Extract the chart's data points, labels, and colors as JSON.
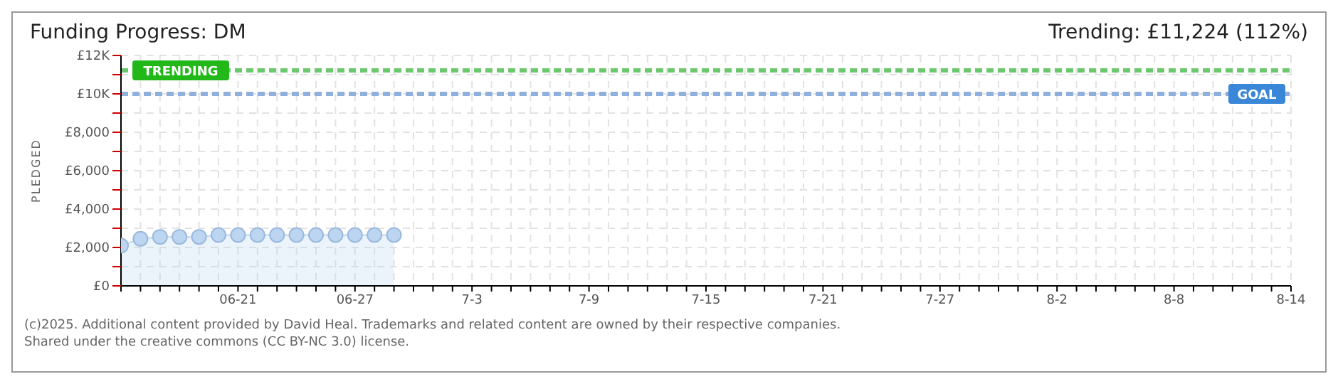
{
  "chart_data": {
    "type": "area",
    "title": "Funding Progress: DM",
    "subtitle": "Trending: £11,224 (112%)",
    "ylabel": "PLEDGED",
    "x": [
      "--06-15",
      "--06-16",
      "--06-17",
      "--06-18",
      "--06-19",
      "--06-20",
      "--06-21",
      "--06-22",
      "--06-23",
      "--06-24",
      "--06-25",
      "--06-26",
      "--06-27",
      "--06-28",
      "--06-29"
    ],
    "series": [
      {
        "color": "#bcd6f2",
        "values": [
          2100,
          2450,
          2550,
          2550,
          2550,
          2650,
          2650,
          2650,
          2650,
          2650,
          2650,
          2650,
          2650,
          2650,
          2650
        ]
      }
    ],
    "marker": "circle",
    "xlim": [
      "--06-15",
      "--08-14"
    ],
    "xticks": [
      {
        "value": "--06-15",
        "label": null
      },
      {
        "value": "--06-16",
        "label": null
      },
      {
        "value": "--06-17",
        "label": null
      },
      {
        "value": "--06-18",
        "label": null
      },
      {
        "value": "--06-19",
        "label": null
      },
      {
        "value": "--06-20",
        "label": null
      },
      {
        "value": "--06-21",
        "label": "06-21"
      },
      {
        "value": "--06-22",
        "label": null
      },
      {
        "value": "--06-23",
        "label": null
      },
      {
        "value": "--06-24",
        "label": null
      },
      {
        "value": "--06-25",
        "label": null
      },
      {
        "value": "--06-26",
        "label": null
      },
      {
        "value": "--06-27",
        "label": "06-27"
      },
      {
        "value": "--06-28",
        "label": null
      },
      {
        "value": "--06-29",
        "label": null
      },
      {
        "value": "--06-30",
        "label": null
      },
      {
        "value": "--07-01",
        "label": null
      },
      {
        "value": "--07-02",
        "label": null
      },
      {
        "value": "--07-03",
        "label": "7-3"
      },
      {
        "value": "--07-04",
        "label": null
      },
      {
        "value": "--07-05",
        "label": null
      },
      {
        "value": "--07-06",
        "label": null
      },
      {
        "value": "--07-07",
        "label": null
      },
      {
        "value": "--07-08",
        "label": null
      },
      {
        "value": "--07-09",
        "label": "7-9"
      },
      {
        "value": "--07-10",
        "label": null
      },
      {
        "value": "--07-11",
        "label": null
      },
      {
        "value": "--07-12",
        "label": null
      },
      {
        "value": "--07-13",
        "label": null
      },
      {
        "value": "--07-14",
        "label": null
      },
      {
        "value": "--07-15",
        "label": "7-15"
      },
      {
        "value": "--07-16",
        "label": null
      },
      {
        "value": "--07-17",
        "label": null
      },
      {
        "value": "--07-18",
        "label": null
      },
      {
        "value": "--07-19",
        "label": null
      },
      {
        "value": "--07-20",
        "label": null
      },
      {
        "value": "--07-21",
        "label": "7-21"
      },
      {
        "value": "--07-22",
        "label": null
      },
      {
        "value": "--07-23",
        "label": null
      },
      {
        "value": "--07-24",
        "label": null
      },
      {
        "value": "--07-25",
        "label": null
      },
      {
        "value": "--07-26",
        "label": null
      },
      {
        "value": "--07-27",
        "label": "7-27"
      },
      {
        "value": "--07-28",
        "label": null
      },
      {
        "value": "--07-29",
        "label": null
      },
      {
        "value": "--07-30",
        "label": null
      },
      {
        "value": "--07-31",
        "label": null
      },
      {
        "value": "--08-01",
        "label": null
      },
      {
        "value": "--08-02",
        "label": "8-2"
      },
      {
        "value": "--08-03",
        "label": null
      },
      {
        "value": "--08-04",
        "label": null
      },
      {
        "value": "--08-05",
        "label": null
      },
      {
        "value": "--08-06",
        "label": null
      },
      {
        "value": "--08-07",
        "label": null
      },
      {
        "value": "--08-08",
        "label": "8-8"
      },
      {
        "value": "--08-09",
        "label": null
      },
      {
        "value": "--08-10",
        "label": null
      },
      {
        "value": "--08-11",
        "label": null
      },
      {
        "value": "--08-12",
        "label": null
      },
      {
        "value": "--08-13",
        "label": null
      },
      {
        "value": "--08-14",
        "label": "8-14"
      }
    ],
    "ylim": [
      0,
      12000
    ],
    "yticks": [
      {
        "value": 0,
        "label": "£0"
      },
      {
        "value": 1000,
        "label": null
      },
      {
        "value": 2000,
        "label": "£2,000"
      },
      {
        "value": 3000,
        "label": null
      },
      {
        "value": 4000,
        "label": "£4,000"
      },
      {
        "value": 5000,
        "label": null
      },
      {
        "value": 6000,
        "label": "£6,000"
      },
      {
        "value": 7000,
        "label": null
      },
      {
        "value": 8000,
        "label": "£8,000"
      },
      {
        "value": 9000,
        "label": null
      },
      {
        "value": 10000,
        "label": "£10K"
      },
      {
        "value": 11000,
        "label": null
      },
      {
        "value": 12000,
        "label": "£12K"
      }
    ],
    "grid": true,
    "ref_lines": [
      {
        "axis": "y",
        "value": 11224,
        "label": "TRENDING",
        "color": "#6cc86c",
        "line_style": "dashed"
      },
      {
        "axis": "y",
        "value": 10000,
        "label": "GOAL",
        "color": "#8fb0dc",
        "line_style": "dashed"
      }
    ],
    "annotations": [
      "(c)2025. Additional content provided by David Heal. Trademarks and related content are owned by their respective companies.",
      "Shared under the creative commons (CC BY-NC 3.0) license."
    ]
  }
}
